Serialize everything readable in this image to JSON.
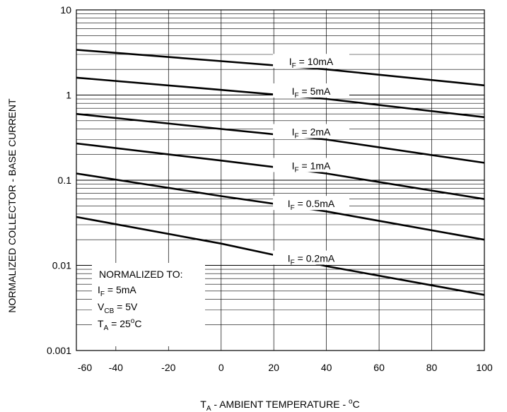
{
  "chart_data": {
    "type": "line",
    "xlabel": {
      "main": "T",
      "sub": "A",
      "rest": " - AMBIENT TEMPERATURE - ",
      "deg": "o",
      "unit": "C"
    },
    "ylabel": "NORMALIZED COLLECTOR - BASE CURRENT",
    "xlim": [
      -55,
      100
    ],
    "ylim": [
      0.001,
      10
    ],
    "yscale": "log",
    "grid": true,
    "x_ticks": [
      "-60",
      "-40",
      "-20",
      "0",
      "20",
      "40",
      "60",
      "80",
      "100"
    ],
    "y_ticks": [
      "10",
      "1",
      "0.1",
      "0.01",
      "0.001"
    ],
    "series": [
      {
        "name": "I_F = 10mA",
        "label": {
          "main": "I",
          "sub": "F",
          "rest": " = 10mA"
        },
        "x": [
          -55,
          0,
          40,
          100
        ],
        "y": [
          3.4,
          2.5,
          2.0,
          1.3
        ]
      },
      {
        "name": "I_F = 5mA",
        "label": {
          "main": "I",
          "sub": "F",
          "rest": " = 5mA"
        },
        "x": [
          -55,
          0,
          40,
          100
        ],
        "y": [
          1.6,
          1.15,
          0.9,
          0.55
        ]
      },
      {
        "name": "I_F = 2mA",
        "label": {
          "main": "I",
          "sub": "F",
          "rest": " = 2mA"
        },
        "x": [
          -55,
          0,
          40,
          100
        ],
        "y": [
          0.6,
          0.4,
          0.3,
          0.16
        ]
      },
      {
        "name": "I_F = 1mA",
        "label": {
          "main": "I",
          "sub": "F",
          "rest": " = 1mA"
        },
        "x": [
          -55,
          0,
          40,
          100
        ],
        "y": [
          0.27,
          0.17,
          0.12,
          0.06
        ]
      },
      {
        "name": "I_F = 0.5mA",
        "label": {
          "main": "I",
          "sub": "F",
          "rest": " = 0.5mA"
        },
        "x": [
          -55,
          0,
          40,
          100
        ],
        "y": [
          0.12,
          0.065,
          0.043,
          0.02
        ]
      },
      {
        "name": "I_F = 0.2mA",
        "label": {
          "main": "I",
          "sub": "F",
          "rest": " = 0.2mA"
        },
        "x": [
          -55,
          0,
          40,
          100
        ],
        "y": [
          0.037,
          0.018,
          0.0098,
          0.0045
        ]
      }
    ],
    "annotation": {
      "title": "NORMALIZED TO:",
      "lines": [
        {
          "main": "I",
          "sub": "F",
          "rest": "  = 5mA"
        },
        {
          "main": "V",
          "sub": "CB",
          "rest": " = 5V"
        },
        {
          "main": "T",
          "sub": "A",
          "rest": "  = 25",
          "deg": "o",
          "unit": "C"
        }
      ]
    }
  }
}
